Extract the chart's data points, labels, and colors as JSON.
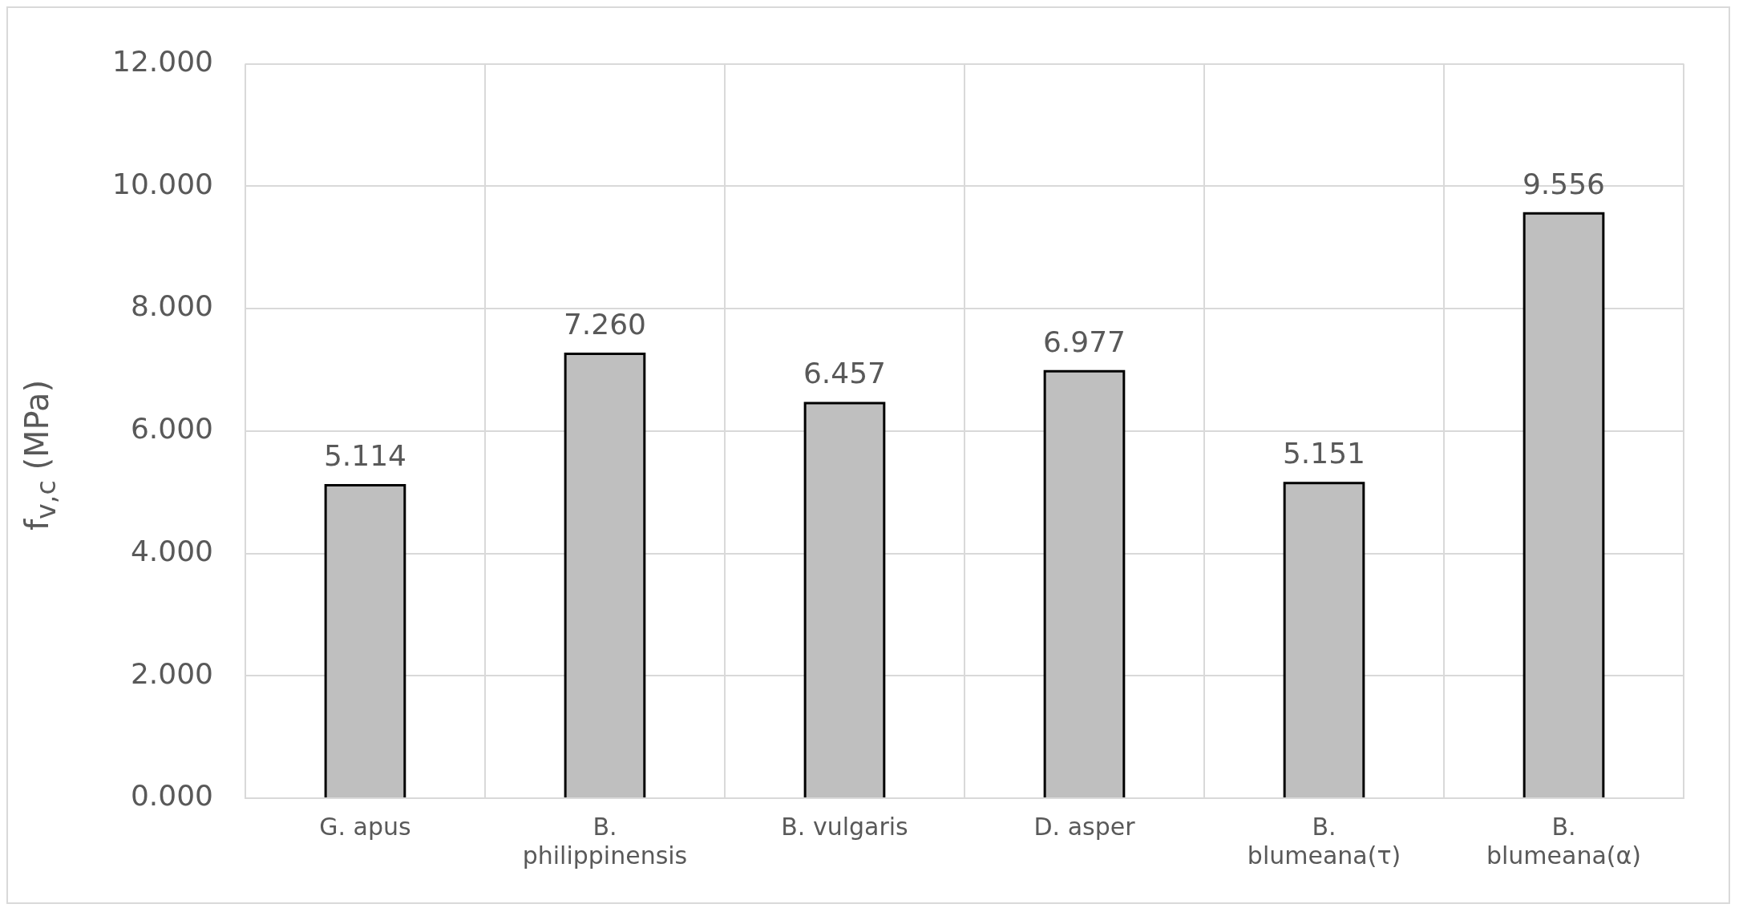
{
  "chart_data": {
    "type": "bar",
    "ylabel": "f$_{v,c}$ (MPa)",
    "categories": [
      "G. apus",
      "B. philippinensis",
      "B. vulgaris",
      "D. asper",
      "B. blumeana(τ)",
      "B. blumeana(α)"
    ],
    "values": [
      5.114,
      7.26,
      6.457,
      6.977,
      5.151,
      9.556
    ],
    "value_labels": [
      "5.114",
      "7.260",
      "6.457",
      "6.977",
      "5.151",
      "9.556"
    ],
    "color": "#bfbfbf",
    "ylim": [
      0,
      12
    ],
    "yticks": [
      {
        "value": 0,
        "label": "0.000"
      },
      {
        "value": 2,
        "label": "2.000"
      },
      {
        "value": 4,
        "label": "4.000"
      },
      {
        "value": 6,
        "label": "6.000"
      },
      {
        "value": 8,
        "label": "8.000"
      },
      {
        "value": 10,
        "label": "10.000"
      },
      {
        "value": 12,
        "label": "12.000"
      }
    ],
    "grid": true,
    "legend": false
  }
}
